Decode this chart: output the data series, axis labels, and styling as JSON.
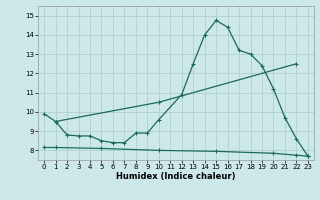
{
  "xlabel": "Humidex (Indice chaleur)",
  "bg_color": "#cce8e8",
  "grid_color": "#b0d0d0",
  "line_color": "#1a6b5a",
  "xlim": [
    -0.5,
    23.5
  ],
  "ylim": [
    7.5,
    15.5
  ],
  "xticks": [
    0,
    1,
    2,
    3,
    4,
    5,
    6,
    7,
    8,
    9,
    10,
    11,
    12,
    13,
    14,
    15,
    16,
    17,
    18,
    19,
    20,
    21,
    22,
    23
  ],
  "yticks": [
    8,
    9,
    10,
    11,
    12,
    13,
    14,
    15
  ],
  "line1_x": [
    0,
    1,
    2,
    3,
    4,
    5,
    6,
    7,
    8,
    9,
    10,
    12,
    13,
    14,
    15,
    16,
    17,
    18,
    19,
    20,
    21,
    22,
    23
  ],
  "line1_y": [
    9.9,
    9.5,
    8.8,
    8.75,
    8.75,
    8.5,
    8.4,
    8.4,
    8.9,
    8.9,
    9.6,
    10.9,
    12.5,
    14.0,
    14.75,
    14.4,
    13.2,
    13.0,
    12.4,
    11.2,
    9.7,
    8.6,
    7.7
  ],
  "line2_x": [
    1,
    10,
    22
  ],
  "line2_y": [
    9.5,
    10.5,
    12.5
  ],
  "line3_x": [
    0,
    1,
    5,
    10,
    15,
    20,
    22,
    23
  ],
  "line3_y": [
    8.15,
    8.15,
    8.1,
    8.0,
    7.95,
    7.85,
    7.75,
    7.7
  ]
}
